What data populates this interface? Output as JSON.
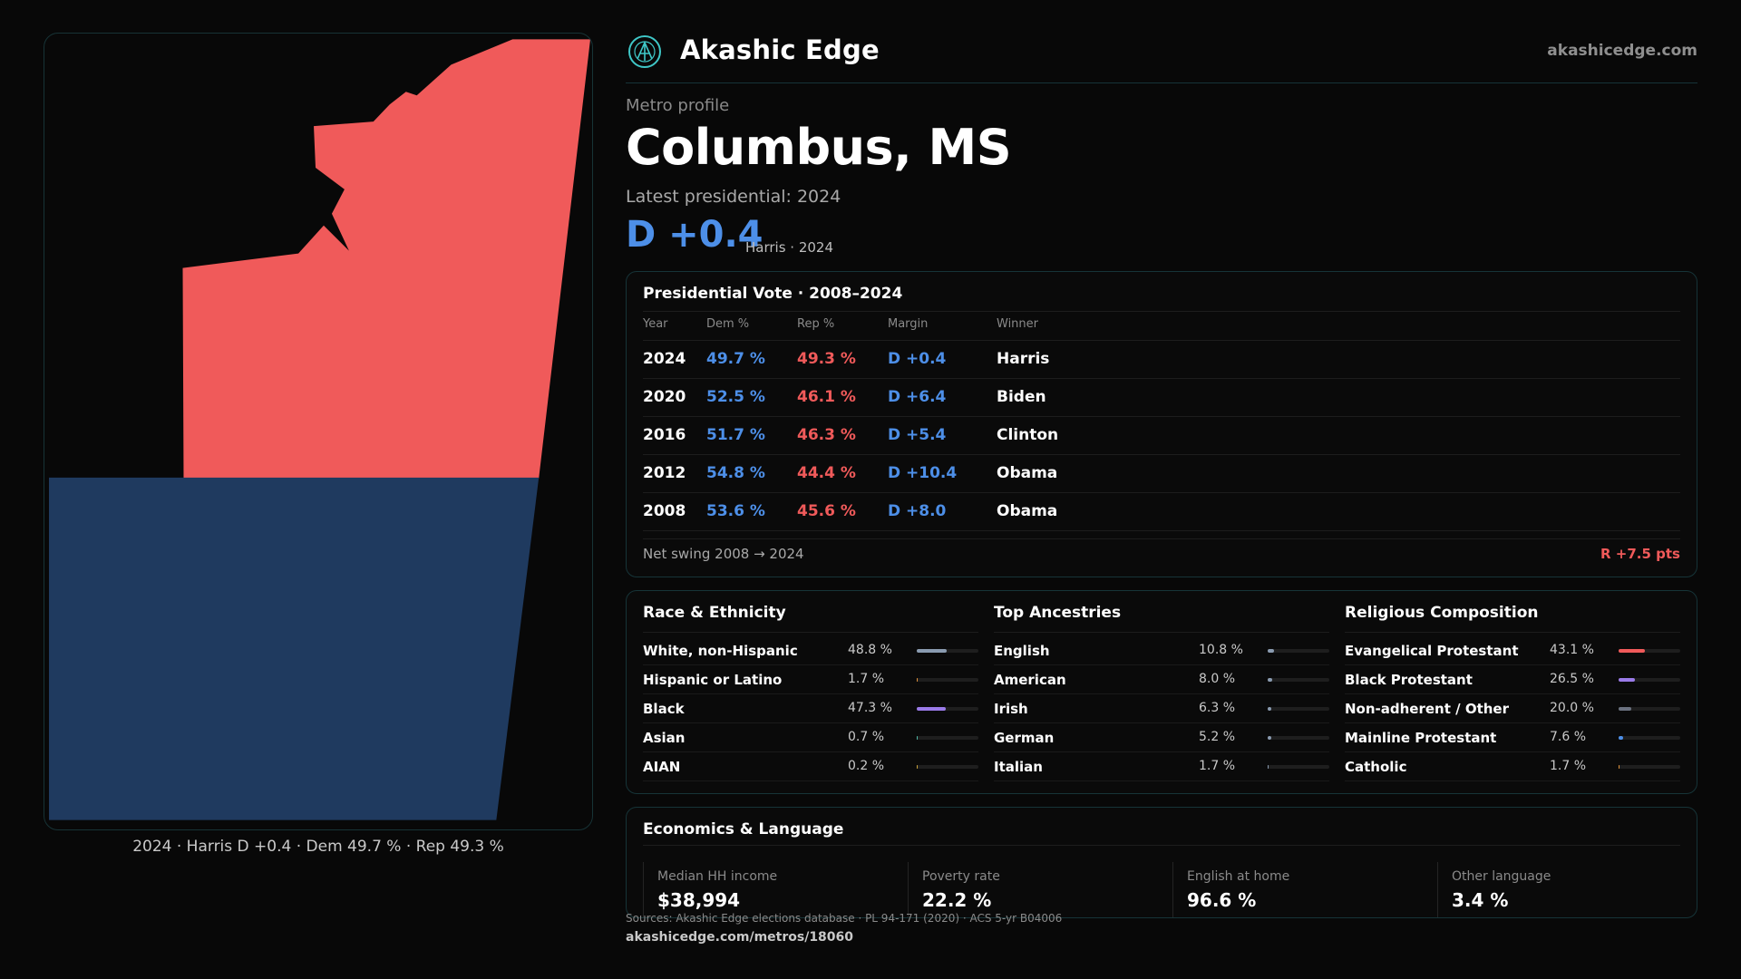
{
  "brand": {
    "name": "Akashic Edge",
    "url": "akashicedge.com"
  },
  "page": {
    "kicker": "Metro profile",
    "title": "Columbus, MS",
    "latest": "Latest presidential: 2024",
    "margin": "D +0.4",
    "margin_sub": "Harris · 2024"
  },
  "map": {
    "caption": "2024 · Harris D +0.4 · Dem 49.7 % · Rep 49.3 %",
    "colors": {
      "rep": "#f05a5a",
      "dem": "#1f3a5f"
    }
  },
  "vote": {
    "title": "Presidential Vote · 2008–2024",
    "headers": {
      "year": "Year",
      "dem": "Dem %",
      "rep": "Rep %",
      "margin": "Margin",
      "winner": "Winner"
    },
    "rows": [
      {
        "year": "2024",
        "dem": "49.7 %",
        "rep": "49.3 %",
        "margin": "D +0.4",
        "winner": "Harris"
      },
      {
        "year": "2020",
        "dem": "52.5 %",
        "rep": "46.1 %",
        "margin": "D +6.4",
        "winner": "Biden"
      },
      {
        "year": "2016",
        "dem": "51.7 %",
        "rep": "46.3 %",
        "margin": "D +5.4",
        "winner": "Clinton"
      },
      {
        "year": "2012",
        "dem": "54.8 %",
        "rep": "44.4 %",
        "margin": "D +10.4",
        "winner": "Obama"
      },
      {
        "year": "2008",
        "dem": "53.6 %",
        "rep": "45.6 %",
        "margin": "D +8.0",
        "winner": "Obama"
      }
    ],
    "swing_label": "Net swing 2008 → 2024",
    "swing_value": "R +7.5 pts"
  },
  "race": {
    "title": "Race & Ethnicity",
    "rows": [
      {
        "label": "White, non-Hispanic",
        "value": "48.8 %",
        "pct": 48.8,
        "color": "#8a9bb0"
      },
      {
        "label": "Hispanic or Latino",
        "value": "1.7 %",
        "pct": 1.7,
        "color": "#e0923a"
      },
      {
        "label": "Black",
        "value": "47.3 %",
        "pct": 47.3,
        "color": "#9a7be8"
      },
      {
        "label": "Asian",
        "value": "0.7 %",
        "pct": 0.7,
        "color": "#4fb8a6"
      },
      {
        "label": "AIAN",
        "value": "0.2 %",
        "pct": 0.2,
        "color": "#c9a23a"
      }
    ]
  },
  "ancestry": {
    "title": "Top Ancestries",
    "rows": [
      {
        "label": "English",
        "value": "10.8 %",
        "pct": 10.8,
        "color": "#8a9bb0"
      },
      {
        "label": "American",
        "value": "8.0 %",
        "pct": 8.0,
        "color": "#8a9bb0"
      },
      {
        "label": "Irish",
        "value": "6.3 %",
        "pct": 6.3,
        "color": "#8a9bb0"
      },
      {
        "label": "German",
        "value": "5.2 %",
        "pct": 5.2,
        "color": "#8a9bb0"
      },
      {
        "label": "Italian",
        "value": "1.7 %",
        "pct": 1.7,
        "color": "#8a9bb0"
      }
    ]
  },
  "religion": {
    "title": "Religious Composition",
    "rows": [
      {
        "label": "Evangelical Protestant",
        "value": "43.1 %",
        "pct": 43.1,
        "color": "#f05a5a"
      },
      {
        "label": "Black Protestant",
        "value": "26.5 %",
        "pct": 26.5,
        "color": "#9a7be8"
      },
      {
        "label": "Non-adherent / Other",
        "value": "20.0 %",
        "pct": 20.0,
        "color": "#6b7280"
      },
      {
        "label": "Mainline Protestant",
        "value": "7.6 %",
        "pct": 7.6,
        "color": "#4d8fe8"
      },
      {
        "label": "Catholic",
        "value": "1.7 %",
        "pct": 1.7,
        "color": "#e0923a"
      }
    ]
  },
  "econ": {
    "title": "Economics & Language",
    "cells": [
      {
        "label": "Median HH income",
        "value": "$38,994"
      },
      {
        "label": "Poverty rate",
        "value": "22.2 %"
      },
      {
        "label": "English at home",
        "value": "96.6 %"
      },
      {
        "label": "Other language",
        "value": "3.4 %"
      }
    ]
  },
  "footer": {
    "sources": "Sources: Akashic Edge elections database · PL 94-171 (2020) · ACS 5-yr B04006",
    "permalink": "akashicedge.com/metros/18060"
  }
}
